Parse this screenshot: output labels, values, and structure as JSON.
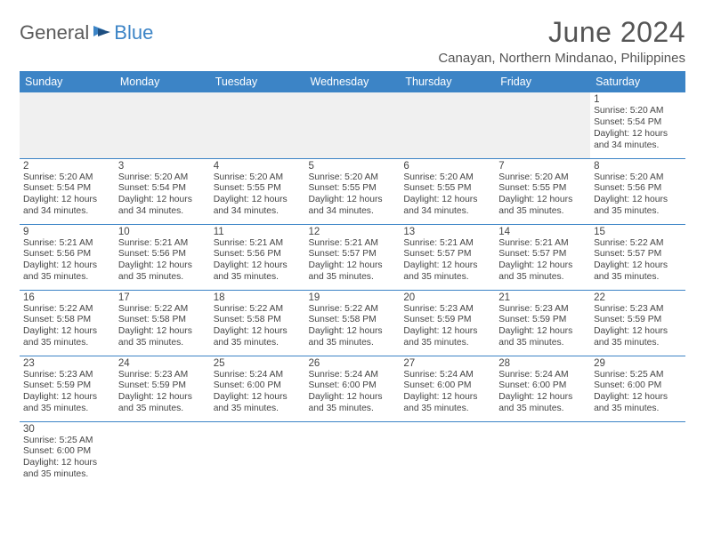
{
  "logo": {
    "text1": "General",
    "text2": "Blue"
  },
  "title": "June 2024",
  "location": "Canayan, Northern Mindanao, Philippines",
  "header_bg": "#3c84c6",
  "header_fg": "#ffffff",
  "border_color": "#3c84c6",
  "empty_bg": "#f0f0f0",
  "day_names": [
    "Sunday",
    "Monday",
    "Tuesday",
    "Wednesday",
    "Thursday",
    "Friday",
    "Saturday"
  ],
  "weeks": [
    [
      null,
      null,
      null,
      null,
      null,
      null,
      {
        "n": "1",
        "sunrise": "Sunrise: 5:20 AM",
        "sunset": "Sunset: 5:54 PM",
        "daylight": "Daylight: 12 hours and 34 minutes."
      }
    ],
    [
      {
        "n": "2",
        "sunrise": "Sunrise: 5:20 AM",
        "sunset": "Sunset: 5:54 PM",
        "daylight": "Daylight: 12 hours and 34 minutes."
      },
      {
        "n": "3",
        "sunrise": "Sunrise: 5:20 AM",
        "sunset": "Sunset: 5:54 PM",
        "daylight": "Daylight: 12 hours and 34 minutes."
      },
      {
        "n": "4",
        "sunrise": "Sunrise: 5:20 AM",
        "sunset": "Sunset: 5:55 PM",
        "daylight": "Daylight: 12 hours and 34 minutes."
      },
      {
        "n": "5",
        "sunrise": "Sunrise: 5:20 AM",
        "sunset": "Sunset: 5:55 PM",
        "daylight": "Daylight: 12 hours and 34 minutes."
      },
      {
        "n": "6",
        "sunrise": "Sunrise: 5:20 AM",
        "sunset": "Sunset: 5:55 PM",
        "daylight": "Daylight: 12 hours and 34 minutes."
      },
      {
        "n": "7",
        "sunrise": "Sunrise: 5:20 AM",
        "sunset": "Sunset: 5:55 PM",
        "daylight": "Daylight: 12 hours and 35 minutes."
      },
      {
        "n": "8",
        "sunrise": "Sunrise: 5:20 AM",
        "sunset": "Sunset: 5:56 PM",
        "daylight": "Daylight: 12 hours and 35 minutes."
      }
    ],
    [
      {
        "n": "9",
        "sunrise": "Sunrise: 5:21 AM",
        "sunset": "Sunset: 5:56 PM",
        "daylight": "Daylight: 12 hours and 35 minutes."
      },
      {
        "n": "10",
        "sunrise": "Sunrise: 5:21 AM",
        "sunset": "Sunset: 5:56 PM",
        "daylight": "Daylight: 12 hours and 35 minutes."
      },
      {
        "n": "11",
        "sunrise": "Sunrise: 5:21 AM",
        "sunset": "Sunset: 5:56 PM",
        "daylight": "Daylight: 12 hours and 35 minutes."
      },
      {
        "n": "12",
        "sunrise": "Sunrise: 5:21 AM",
        "sunset": "Sunset: 5:57 PM",
        "daylight": "Daylight: 12 hours and 35 minutes."
      },
      {
        "n": "13",
        "sunrise": "Sunrise: 5:21 AM",
        "sunset": "Sunset: 5:57 PM",
        "daylight": "Daylight: 12 hours and 35 minutes."
      },
      {
        "n": "14",
        "sunrise": "Sunrise: 5:21 AM",
        "sunset": "Sunset: 5:57 PM",
        "daylight": "Daylight: 12 hours and 35 minutes."
      },
      {
        "n": "15",
        "sunrise": "Sunrise: 5:22 AM",
        "sunset": "Sunset: 5:57 PM",
        "daylight": "Daylight: 12 hours and 35 minutes."
      }
    ],
    [
      {
        "n": "16",
        "sunrise": "Sunrise: 5:22 AM",
        "sunset": "Sunset: 5:58 PM",
        "daylight": "Daylight: 12 hours and 35 minutes."
      },
      {
        "n": "17",
        "sunrise": "Sunrise: 5:22 AM",
        "sunset": "Sunset: 5:58 PM",
        "daylight": "Daylight: 12 hours and 35 minutes."
      },
      {
        "n": "18",
        "sunrise": "Sunrise: 5:22 AM",
        "sunset": "Sunset: 5:58 PM",
        "daylight": "Daylight: 12 hours and 35 minutes."
      },
      {
        "n": "19",
        "sunrise": "Sunrise: 5:22 AM",
        "sunset": "Sunset: 5:58 PM",
        "daylight": "Daylight: 12 hours and 35 minutes."
      },
      {
        "n": "20",
        "sunrise": "Sunrise: 5:23 AM",
        "sunset": "Sunset: 5:59 PM",
        "daylight": "Daylight: 12 hours and 35 minutes."
      },
      {
        "n": "21",
        "sunrise": "Sunrise: 5:23 AM",
        "sunset": "Sunset: 5:59 PM",
        "daylight": "Daylight: 12 hours and 35 minutes."
      },
      {
        "n": "22",
        "sunrise": "Sunrise: 5:23 AM",
        "sunset": "Sunset: 5:59 PM",
        "daylight": "Daylight: 12 hours and 35 minutes."
      }
    ],
    [
      {
        "n": "23",
        "sunrise": "Sunrise: 5:23 AM",
        "sunset": "Sunset: 5:59 PM",
        "daylight": "Daylight: 12 hours and 35 minutes."
      },
      {
        "n": "24",
        "sunrise": "Sunrise: 5:23 AM",
        "sunset": "Sunset: 5:59 PM",
        "daylight": "Daylight: 12 hours and 35 minutes."
      },
      {
        "n": "25",
        "sunrise": "Sunrise: 5:24 AM",
        "sunset": "Sunset: 6:00 PM",
        "daylight": "Daylight: 12 hours and 35 minutes."
      },
      {
        "n": "26",
        "sunrise": "Sunrise: 5:24 AM",
        "sunset": "Sunset: 6:00 PM",
        "daylight": "Daylight: 12 hours and 35 minutes."
      },
      {
        "n": "27",
        "sunrise": "Sunrise: 5:24 AM",
        "sunset": "Sunset: 6:00 PM",
        "daylight": "Daylight: 12 hours and 35 minutes."
      },
      {
        "n": "28",
        "sunrise": "Sunrise: 5:24 AM",
        "sunset": "Sunset: 6:00 PM",
        "daylight": "Daylight: 12 hours and 35 minutes."
      },
      {
        "n": "29",
        "sunrise": "Sunrise: 5:25 AM",
        "sunset": "Sunset: 6:00 PM",
        "daylight": "Daylight: 12 hours and 35 minutes."
      }
    ],
    [
      {
        "n": "30",
        "sunrise": "Sunrise: 5:25 AM",
        "sunset": "Sunset: 6:00 PM",
        "daylight": "Daylight: 12 hours and 35 minutes."
      },
      null,
      null,
      null,
      null,
      null,
      null
    ]
  ]
}
